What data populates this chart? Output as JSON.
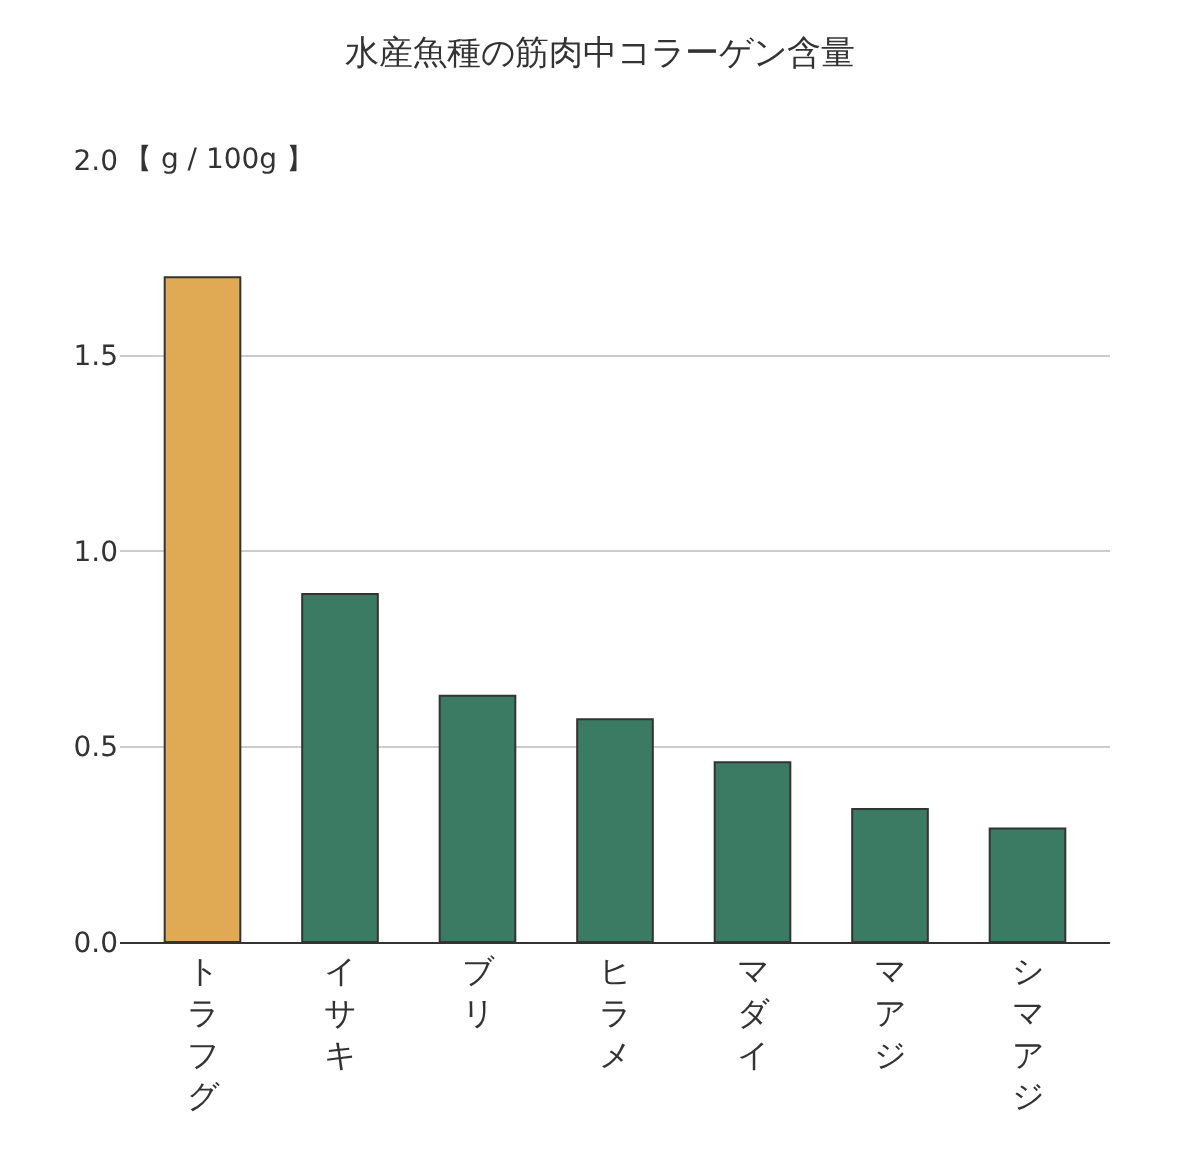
{
  "chart_data": {
    "type": "bar",
    "title": "水産魚種の筋肉中コラーゲン含量",
    "ylabel": "【 g / 100g 】",
    "categories": [
      "トラフグ",
      "イサキ",
      "ブリ",
      "ヒラメ",
      "マダイ",
      "マアジ",
      "シマアジ"
    ],
    "values": [
      1.7,
      0.89,
      0.63,
      0.57,
      0.46,
      0.34,
      0.29
    ],
    "colors": [
      "#e0aa55",
      "#3b7b64",
      "#3b7b64",
      "#3b7b64",
      "#3b7b64",
      "#3b7b64",
      "#3b7b64"
    ],
    "ylim": [
      0,
      2.0
    ],
    "yticks": [
      {
        "value": 0,
        "label": "0.0"
      },
      {
        "value": 0.5,
        "label": "0.5"
      },
      {
        "value": 1.0,
        "label": "1.0"
      },
      {
        "value": 1.5,
        "label": "1.5"
      },
      {
        "value": 2.0,
        "label": "2.0"
      }
    ],
    "grid": "y"
  }
}
